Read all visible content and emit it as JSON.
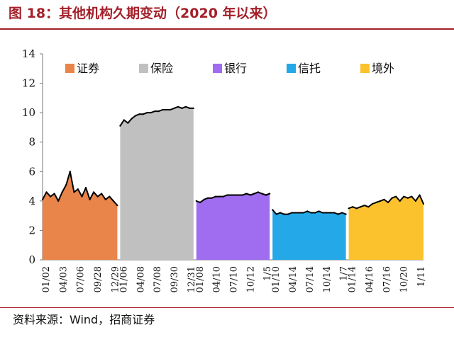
{
  "title": "图 18：其他机构久期变动（2020 年以来）",
  "source": "资料来源：Wind，招商证券",
  "chart_data": {
    "type": "area",
    "ylim": [
      0,
      14
    ],
    "yticks": [
      "0",
      "2",
      "4",
      "6",
      "8",
      "10",
      "12",
      "14"
    ],
    "grid": false,
    "legend_position": "top",
    "series": [
      {
        "name": "证券",
        "color": "#e9854a",
        "x_labels": [
          "01/02",
          "04/03",
          "07/06",
          "09/28",
          "12/29"
        ],
        "values": [
          4.1,
          4.6,
          4.3,
          4.5,
          4.0,
          4.6,
          5.1,
          6.0,
          4.6,
          4.8,
          4.3,
          4.9,
          4.1,
          4.6,
          4.3,
          4.5,
          4.1,
          4.3,
          4.0,
          3.7
        ]
      },
      {
        "name": "保险",
        "color": "#c0c0c0",
        "x_labels": [
          "01/06",
          "04/08",
          "07/08",
          "09/30",
          "12/31"
        ],
        "values": [
          9.1,
          9.5,
          9.3,
          9.6,
          9.8,
          9.9,
          9.9,
          10.0,
          10.0,
          10.1,
          10.1,
          10.2,
          10.2,
          10.2,
          10.3,
          10.4,
          10.3,
          10.4,
          10.3,
          10.3
        ]
      },
      {
        "name": "银行",
        "color": "#a06cf0",
        "x_labels": [
          "01/08",
          "04/10",
          "07/10",
          "10/12",
          "1/5"
        ],
        "values": [
          4.0,
          3.9,
          4.1,
          4.2,
          4.2,
          4.3,
          4.3,
          4.3,
          4.4,
          4.4,
          4.4,
          4.4,
          4.4,
          4.5,
          4.4,
          4.5,
          4.6,
          4.5,
          4.4,
          4.5
        ]
      },
      {
        "name": "信托",
        "color": "#24a8e8",
        "x_labels": [
          "01/10",
          "04/14",
          "07/14",
          "10/14",
          "1/7"
        ],
        "values": [
          3.4,
          3.1,
          3.2,
          3.1,
          3.1,
          3.2,
          3.2,
          3.2,
          3.2,
          3.3,
          3.2,
          3.2,
          3.3,
          3.2,
          3.2,
          3.2,
          3.2,
          3.1,
          3.2,
          3.1
        ]
      },
      {
        "name": "境外",
        "color": "#fbc22e",
        "x_labels": [
          "01/14",
          "04/16",
          "07/16",
          "10/20",
          "1/11"
        ],
        "values": [
          3.5,
          3.6,
          3.5,
          3.6,
          3.7,
          3.6,
          3.8,
          3.9,
          4.0,
          4.1,
          3.9,
          4.2,
          4.3,
          4.0,
          4.3,
          4.2,
          4.3,
          4.0,
          4.4,
          3.8
        ]
      }
    ]
  }
}
